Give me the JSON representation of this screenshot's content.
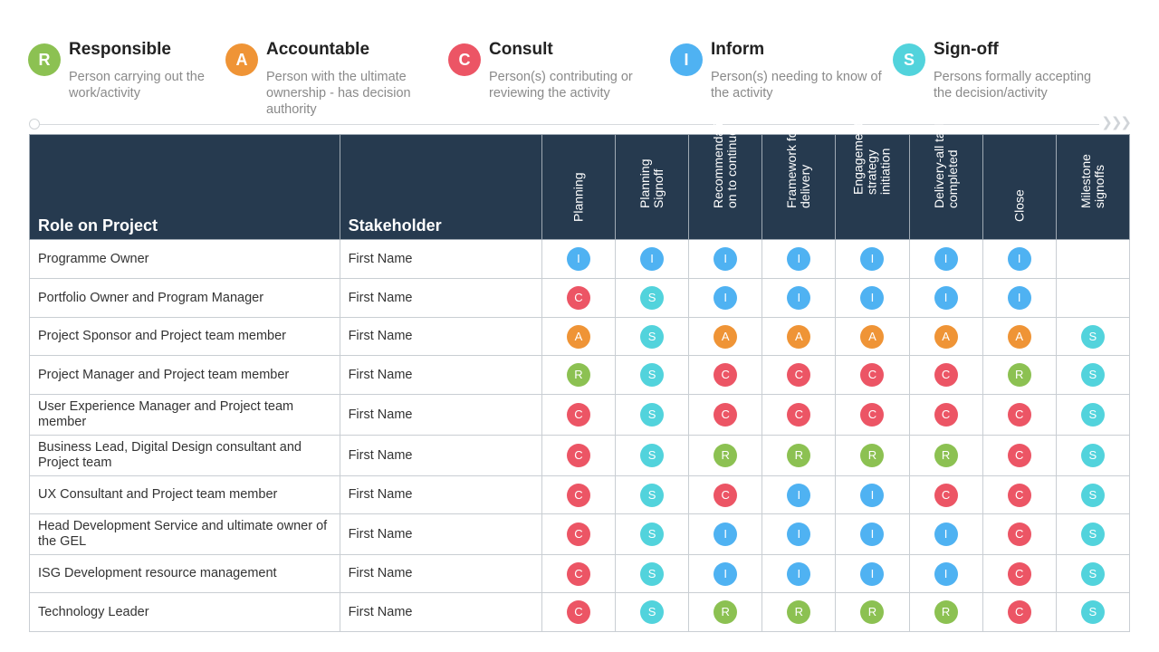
{
  "colors": {
    "R": "#8cc152",
    "A": "#ef9436",
    "C": "#ec5565",
    "I": "#4fb2f2",
    "S": "#52d3dc",
    "header_bg": "#263a4f"
  },
  "legend": [
    {
      "letter": "R",
      "title": "Responsible",
      "desc": "Person carrying out the work/activity"
    },
    {
      "letter": "A",
      "title": "Accountable",
      "desc": "Person with the ultimate ownership - has decision authority"
    },
    {
      "letter": "C",
      "title": "Consult",
      "desc": "Person(s) contributing or reviewing the activity"
    },
    {
      "letter": "I",
      "title": "Inform",
      "desc": "Person(s) needing to know of the activity"
    },
    {
      "letter": "S",
      "title": "Sign-off",
      "desc": "Persons formally accepting the decision/activity"
    }
  ],
  "table": {
    "role_header": "Role on Project",
    "stakeholder_header": "Stakeholder",
    "phases": [
      "Planning",
      "Planning Signoff",
      "Recommendati on to continue",
      "Framework for delivery",
      "Engagement strategy initiation",
      "Delivery-all tasks completed",
      "Close",
      "Milestone signoffs"
    ],
    "rows": [
      {
        "role": "Programme Owner",
        "stakeholder": "First Name",
        "cells": [
          "I",
          "I",
          "I",
          "I",
          "I",
          "I",
          "I",
          ""
        ]
      },
      {
        "role": "Portfolio Owner and Program Manager",
        "stakeholder": "First Name",
        "cells": [
          "C",
          "S",
          "I",
          "I",
          "I",
          "I",
          "I",
          ""
        ]
      },
      {
        "role": "Project Sponsor and Project team member",
        "stakeholder": "First Name",
        "cells": [
          "A",
          "S",
          "A",
          "A",
          "A",
          "A",
          "A",
          "S"
        ]
      },
      {
        "role": "Project Manager and Project team member",
        "stakeholder": "First Name",
        "cells": [
          "R",
          "S",
          "C",
          "C",
          "C",
          "C",
          "R",
          "S"
        ]
      },
      {
        "role": "User Experience Manager and Project team member",
        "stakeholder": "First Name",
        "cells": [
          "C",
          "S",
          "C",
          "C",
          "C",
          "C",
          "C",
          "S"
        ]
      },
      {
        "role": "Business Lead, Digital Design consultant and Project team",
        "stakeholder": "First Name",
        "cells": [
          "C",
          "S",
          "R",
          "R",
          "R",
          "R",
          "C",
          "S"
        ]
      },
      {
        "role": "UX Consultant and Project team member",
        "stakeholder": "First Name",
        "cells": [
          "C",
          "S",
          "C",
          "I",
          "I",
          "C",
          "C",
          "S"
        ]
      },
      {
        "role": "Head Development Service and ultimate owner of the GEL",
        "stakeholder": "First Name",
        "cells": [
          "C",
          "S",
          "I",
          "I",
          "I",
          "I",
          "C",
          "S"
        ]
      },
      {
        "role": "ISG Development resource management",
        "stakeholder": "First Name",
        "cells": [
          "C",
          "S",
          "I",
          "I",
          "I",
          "I",
          "C",
          "S"
        ]
      },
      {
        "role": "Technology Leader",
        "stakeholder": "First Name",
        "cells": [
          "C",
          "S",
          "R",
          "R",
          "R",
          "R",
          "C",
          "S"
        ]
      }
    ]
  }
}
